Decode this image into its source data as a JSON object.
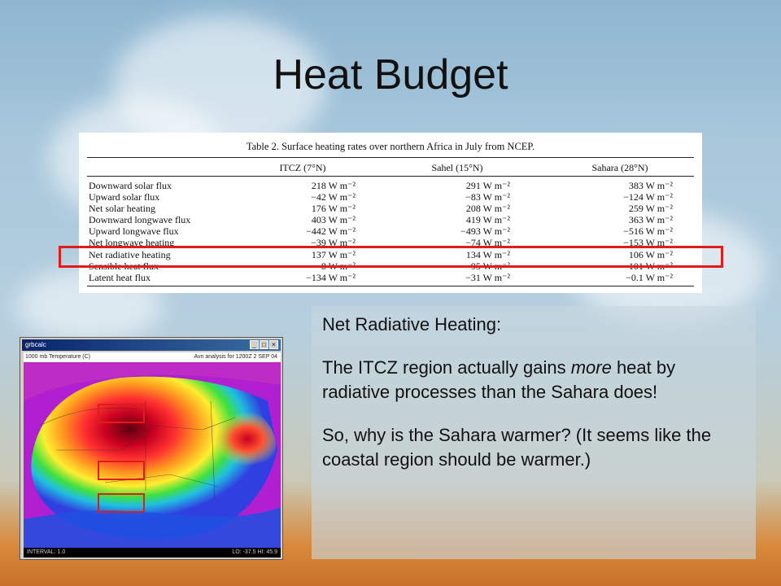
{
  "slide": {
    "title": "Heat Budget"
  },
  "table": {
    "caption": "Table 2. Surface heating rates over northern Africa in July from NCEP.",
    "columns": [
      "ITCZ (7°N)",
      "Sahel (15°N)",
      "Sahara (28°N)"
    ],
    "rows": [
      {
        "label": "Downward solar flux",
        "v": [
          "218 W m⁻²",
          "291 W m⁻²",
          "383 W m⁻²"
        ]
      },
      {
        "label": "Upward solar flux",
        "v": [
          "−42 W m⁻²",
          "−83 W m⁻²",
          "−124 W m⁻²"
        ]
      },
      {
        "label": "Net solar heating",
        "v": [
          "176 W m⁻²",
          "208 W m⁻²",
          "259 W m⁻²"
        ]
      },
      {
        "label": "Downward longwave flux",
        "v": [
          "403 W m⁻²",
          "419 W m⁻²",
          "363 W m⁻²"
        ]
      },
      {
        "label": "Upward longwave flux",
        "v": [
          "−442 W m⁻²",
          "−493 W m⁻²",
          "−516 W m⁻²"
        ]
      },
      {
        "label": "Net longwave heating",
        "v": [
          "−39 W m⁻²",
          "−74 W m⁻²",
          "−153 W m⁻²"
        ]
      },
      {
        "label": "Net radiative heating",
        "v": [
          "137 W m⁻²",
          "134 W m⁻²",
          "106 W m⁻²"
        ]
      },
      {
        "label": "Sensible heat flux",
        "v": [
          "−8 W m⁻²",
          "−95 W m⁻²",
          "−101 W m⁻²"
        ]
      },
      {
        "label": "Latent heat flux",
        "v": [
          "−134 W m⁻²",
          "−31 W m⁻²",
          "−0.1 W m⁻²"
        ]
      }
    ],
    "highlight_color": "#e21b1b"
  },
  "panel": {
    "heading": "Net Radiative Heating:",
    "p2_before": "The ITCZ region actually gains ",
    "p2_em": "more",
    "p2_after": " heat by radiative processes than the Sahara does!",
    "p3": "So, why is the Sahara warmer? (It seems like the coastal region should be warmer.)"
  },
  "map_window": {
    "app_title": "grbcalc",
    "header_left": "1000 mb Temperature (C)",
    "header_right": "Avn analysis for 1200Z  2 SEP 04",
    "footer_left": "INTERVAL:  1.0",
    "footer_right": "LO: -37.5  HI: 45.9",
    "box_color": "#e21b1b"
  }
}
